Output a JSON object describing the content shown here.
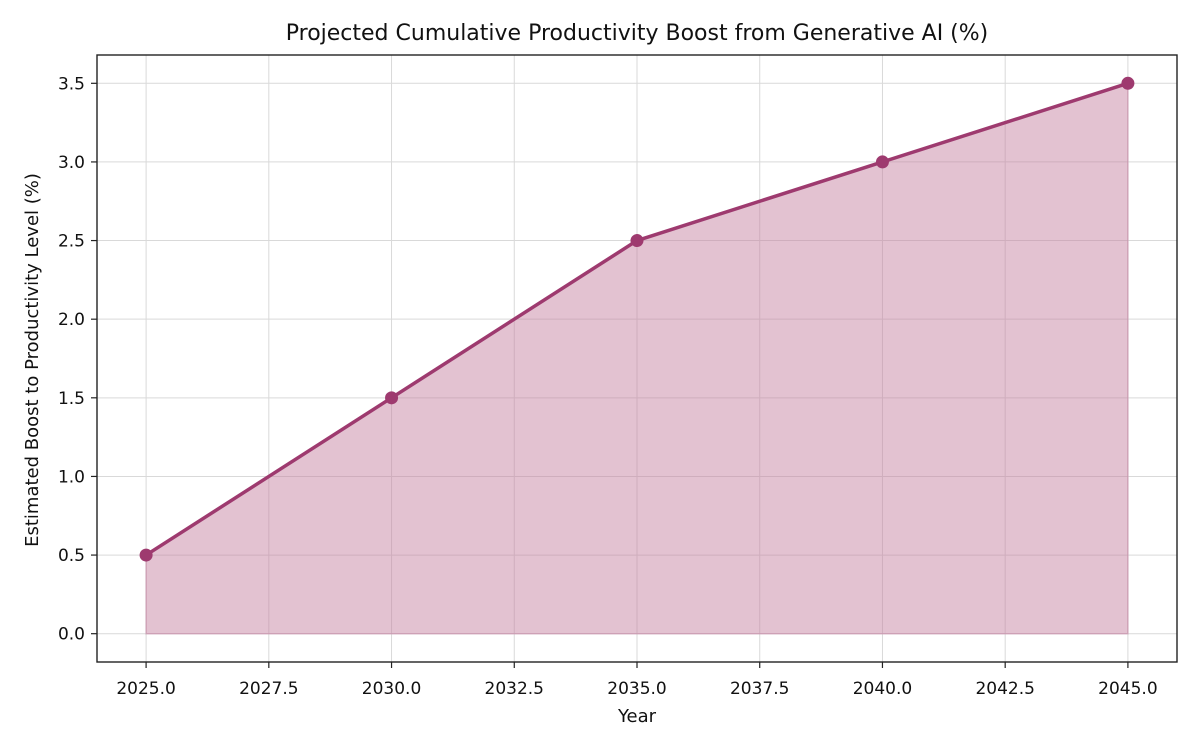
{
  "chart_data": {
    "type": "area",
    "title": "Projected Cumulative Productivity Boost from Generative AI (%)",
    "xlabel": "Year",
    "ylabel": "Estimated Boost to Productivity Level (%)",
    "x": [
      2025,
      2030,
      2035,
      2040,
      2045
    ],
    "y": [
      0.5,
      1.5,
      2.5,
      3.0,
      3.5
    ],
    "xlim": [
      2024,
      2046
    ],
    "ylim": [
      -0.18,
      3.68
    ],
    "xticks": [
      2025,
      2027.5,
      2030,
      2032.5,
      2035,
      2037.5,
      2040,
      2042.5,
      2045
    ],
    "xtick_labels": [
      "2025.0",
      "2027.5",
      "2030.0",
      "2032.5",
      "2035.0",
      "2037.5",
      "2040.0",
      "2042.5",
      "2045.0"
    ],
    "yticks": [
      0,
      0.5,
      1.0,
      1.5,
      2.0,
      2.5,
      3.0,
      3.5
    ],
    "ytick_labels": [
      "0.0",
      "0.5",
      "1.0",
      "1.5",
      "2.0",
      "2.5",
      "3.0",
      "3.5"
    ],
    "grid": true,
    "colors": {
      "line": "#9e3a6f",
      "fill": "#c47f9f",
      "grid": "#d9d9d9",
      "axis": "#222222"
    }
  }
}
